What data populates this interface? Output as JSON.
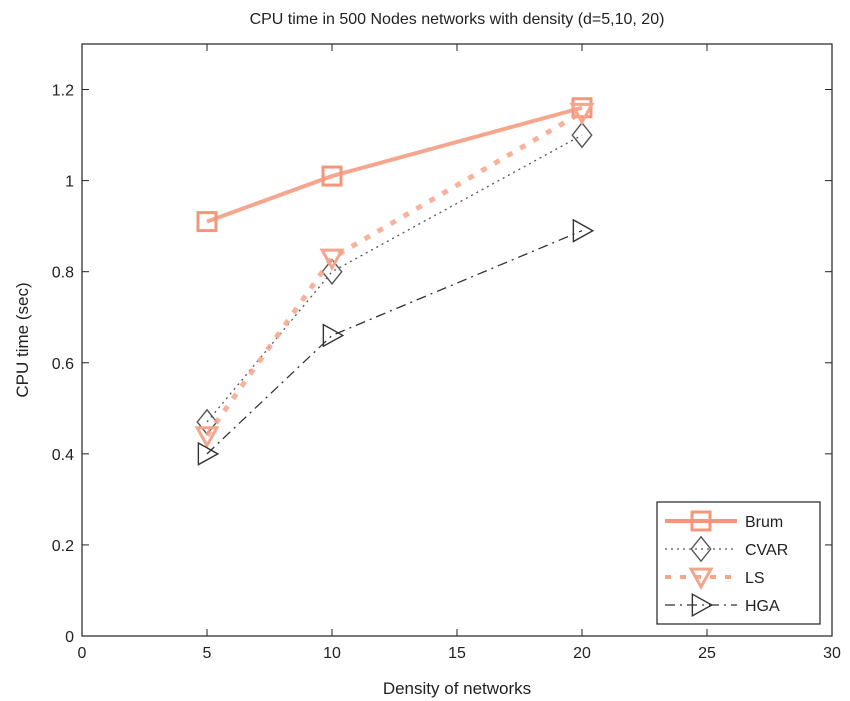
{
  "chart_data": {
    "type": "line",
    "title": "CPU time in 500 Nodes networks with density (d=5,10, 20)",
    "xlabel": "Density of networks",
    "ylabel": "CPU time (sec)",
    "xlim": [
      0,
      30
    ],
    "ylim": [
      0,
      1.3
    ],
    "xticks": [
      0,
      5,
      10,
      15,
      20,
      25,
      30
    ],
    "yticks": [
      0,
      0.2,
      0.4,
      0.6,
      0.8,
      1,
      1.2
    ],
    "xtick_labels": [
      "0",
      "5",
      "10",
      "15",
      "20",
      "25",
      "30"
    ],
    "ytick_labels": [
      "0",
      "0.2",
      "0.4",
      "0.6",
      "0.8",
      "1",
      "1.2"
    ],
    "grid": false,
    "legend_position": "bottom-right",
    "series": [
      {
        "name": "Brum",
        "x": [
          5,
          10,
          20
        ],
        "y": [
          0.91,
          1.01,
          1.16
        ],
        "color": "#f4967a",
        "marker": "square",
        "line": "solid"
      },
      {
        "name": "CVAR",
        "x": [
          5,
          10,
          20
        ],
        "y": [
          0.47,
          0.8,
          1.1
        ],
        "color": "#555555",
        "marker": "diamond",
        "line": "dotted"
      },
      {
        "name": "LS",
        "x": [
          5,
          10,
          20
        ],
        "y": [
          0.44,
          0.83,
          1.15
        ],
        "color": "#f4a58c",
        "marker": "triangle-down",
        "line": "dashed"
      },
      {
        "name": "HGA",
        "x": [
          5,
          10,
          20
        ],
        "y": [
          0.4,
          0.66,
          0.89
        ],
        "color": "#333333",
        "marker": "triangle-right",
        "line": "dashdot"
      }
    ]
  }
}
